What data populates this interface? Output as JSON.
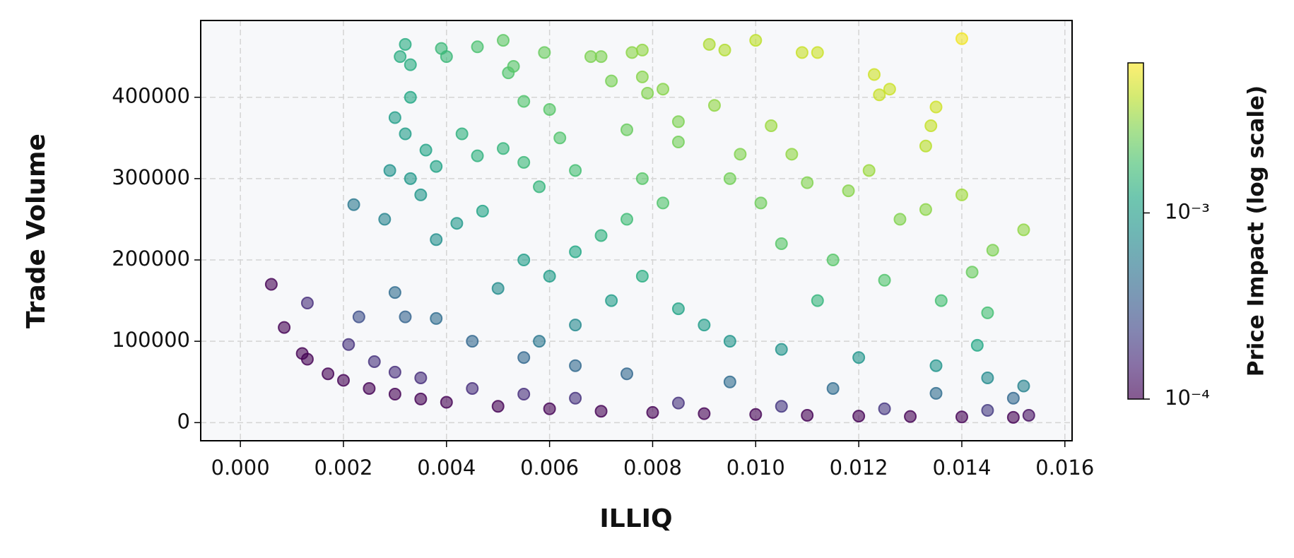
{
  "chart_data": {
    "type": "scatter",
    "xlabel": "ILLIQ",
    "ylabel": "Trade Volume",
    "colorbar_label": "Price Impact (log scale)",
    "colormap": "viridis",
    "alpha": 0.6,
    "grid": true,
    "clog": true,
    "xlim": [
      -0.00077,
      0.01614
    ],
    "ylim": [
      -22300,
      494400
    ],
    "clim": [
      0.0001,
      0.0064
    ],
    "xticks": [
      {
        "value": 0,
        "label": "0.000"
      },
      {
        "value": 0.002,
        "label": "0.002"
      },
      {
        "value": 0.004,
        "label": "0.004"
      },
      {
        "value": 0.006,
        "label": "0.006"
      },
      {
        "value": 0.008,
        "label": "0.008"
      },
      {
        "value": 0.01,
        "label": "0.010"
      },
      {
        "value": 0.012,
        "label": "0.012"
      },
      {
        "value": 0.014,
        "label": "0.014"
      },
      {
        "value": 0.016,
        "label": "0.016"
      }
    ],
    "yticks": [
      0,
      100000,
      200000,
      300000,
      400000
    ],
    "cticks": [
      {
        "value": 0.0001,
        "label": "10⁻⁴"
      },
      {
        "value": 0.001,
        "label": "10⁻³"
      }
    ],
    "x": [
      0.0006,
      0.00085,
      0.0013,
      0.0012,
      0.0013,
      0.0017,
      0.002,
      0.0025,
      0.003,
      0.0035,
      0.004,
      0.005,
      0.006,
      0.007,
      0.008,
      0.009,
      0.01,
      0.011,
      0.012,
      0.013,
      0.014,
      0.015,
      0.0153,
      0.0021,
      0.0023,
      0.0026,
      0.003,
      0.0035,
      0.0045,
      0.0055,
      0.0065,
      0.0085,
      0.0105,
      0.0125,
      0.0145,
      0.0022,
      0.0028,
      0.003,
      0.0032,
      0.0038,
      0.0045,
      0.0055,
      0.0065,
      0.0075,
      0.0095,
      0.0115,
      0.0135,
      0.015,
      0.0032,
      0.0031,
      0.0033,
      0.0033,
      0.003,
      0.0032,
      0.0033,
      0.0029,
      0.0036,
      0.0038,
      0.0039,
      0.004,
      0.0035,
      0.0038,
      0.0043,
      0.0046,
      0.0046,
      0.0042,
      0.0047,
      0.0051,
      0.0052,
      0.0053,
      0.0055,
      0.0051,
      0.0055,
      0.0058,
      0.0059,
      0.006,
      0.0062,
      0.0065,
      0.0068,
      0.007,
      0.0072,
      0.0076,
      0.0078,
      0.0078,
      0.0079,
      0.0075,
      0.0082,
      0.0085,
      0.0085,
      0.0078,
      0.0075,
      0.0082,
      0.007,
      0.0065,
      0.006,
      0.0055,
      0.005,
      0.0072,
      0.0078,
      0.0085,
      0.009,
      0.0065,
      0.0058,
      0.0095,
      0.0105,
      0.012,
      0.0135,
      0.0145,
      0.0152,
      0.0091,
      0.0094,
      0.01,
      0.0092,
      0.0097,
      0.0103,
      0.0107,
      0.0095,
      0.0101,
      0.011,
      0.0109,
      0.0112,
      0.0123,
      0.0126,
      0.0124,
      0.0135,
      0.0134,
      0.0133,
      0.014,
      0.014,
      0.0152,
      0.0146,
      0.0122,
      0.0118,
      0.0128,
      0.0133,
      0.0105,
      0.0115,
      0.0125,
      0.0136,
      0.0142,
      0.0145,
      0.0143,
      0.0112
    ],
    "values": [
      170000,
      117000,
      147000,
      85000,
      78000,
      60000,
      52000,
      42000,
      35000,
      29000,
      25000,
      20000,
      17000,
      14000,
      12500,
      11000,
      10000,
      9000,
      8000,
      7500,
      7000,
      6500,
      9000,
      96000,
      130000,
      75000,
      62000,
      55000,
      42000,
      35000,
      30000,
      24000,
      20000,
      17000,
      15000,
      268000,
      250000,
      160000,
      130000,
      128000,
      100000,
      80000,
      70000,
      60000,
      50000,
      42000,
      36000,
      30000,
      465000,
      450000,
      440000,
      400000,
      375000,
      355000,
      300000,
      310000,
      335000,
      315000,
      460000,
      450000,
      280000,
      225000,
      355000,
      462000,
      328000,
      245000,
      260000,
      470000,
      430000,
      438000,
      395000,
      337000,
      320000,
      290000,
      455000,
      385000,
      350000,
      310000,
      450000,
      450000,
      420000,
      455000,
      458000,
      425000,
      405000,
      360000,
      410000,
      370000,
      345000,
      300000,
      250000,
      270000,
      230000,
      210000,
      180000,
      200000,
      165000,
      150000,
      180000,
      140000,
      120000,
      120000,
      100000,
      100000,
      90000,
      80000,
      70000,
      55000,
      45000,
      465000,
      458000,
      470000,
      390000,
      330000,
      365000,
      330000,
      300000,
      270000,
      295000,
      455000,
      455000,
      428000,
      410000,
      403000,
      388000,
      365000,
      340000,
      472000,
      280000,
      237000,
      212000,
      310000,
      285000,
      250000,
      262000,
      220000,
      200000,
      175000,
      150000,
      185000,
      135000,
      95000,
      150000
    ],
    "color_values": [
      0.0001,
      0.0001,
      0.00017,
      0.0001,
      0.0001,
      0.0001,
      0.0001,
      0.0001,
      0.0001,
      0.0001,
      0.0001,
      0.0001,
      0.0001,
      0.0001,
      0.0001,
      0.0001,
      0.0001,
      0.0001,
      0.0001,
      0.0001,
      0.0001,
      0.0001,
      0.00012,
      0.00018,
      0.00027,
      0.00018,
      0.00017,
      0.00017,
      0.00017,
      0.00017,
      0.00018,
      0.00018,
      0.00019,
      0.00019,
      0.0002,
      0.00053,
      0.00063,
      0.00043,
      0.00037,
      0.00044,
      0.0004,
      0.0004,
      0.00041,
      0.0004,
      0.00043,
      0.00043,
      0.00044,
      0.0004,
      0.0013,
      0.0013,
      0.0013,
      0.0012,
      0.001,
      0.001,
      0.00089,
      0.00081,
      0.0011,
      0.0011,
      0.0016,
      0.0016,
      0.00088,
      0.00077,
      0.0014,
      0.0019,
      0.0014,
      0.0009,
      0.0011,
      0.0022,
      0.002,
      0.0021,
      0.002,
      0.0015,
      0.0016,
      0.0015,
      0.0024,
      0.0021,
      0.002,
      0.0018,
      0.0028,
      0.0028,
      0.0027,
      0.0031,
      0.0032,
      0.003,
      0.0029,
      0.0024,
      0.003,
      0.0028,
      0.0026,
      0.0021,
      0.0017,
      0.002,
      0.0014,
      0.0012,
      0.00097,
      0.00099,
      0.00074,
      0.00097,
      0.0013,
      0.0011,
      0.00097,
      0.0007,
      0.00052,
      0.00086,
      0.00085,
      0.00086,
      0.00085,
      0.00072,
      0.00062,
      0.0038,
      0.0039,
      0.0042,
      0.0032,
      0.0029,
      0.0034,
      0.0032,
      0.0026,
      0.0025,
      0.0029,
      0.0045,
      0.0046,
      0.0047,
      0.0046,
      0.0045,
      0.0047,
      0.0044,
      0.0041,
      0.0059,
      0.0035,
      0.0032,
      0.0028,
      0.0034,
      0.003,
      0.0029,
      0.0031,
      0.0021,
      0.0021,
      0.002,
      0.0018,
      0.0024,
      0.0018,
      0.0012,
      0.0015
    ]
  }
}
